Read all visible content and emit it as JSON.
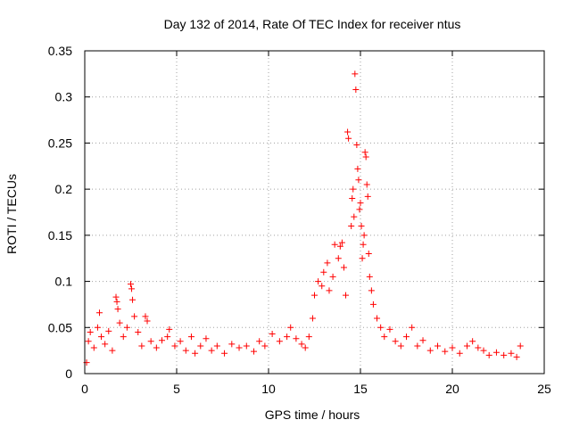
{
  "chart_data": {
    "type": "scatter",
    "title": "Day 132 of 2014, Rate Of TEC Index for receiver ntus",
    "xlabel": "GPS time / hours",
    "ylabel": "ROTI / TECUs",
    "xlim": [
      0,
      25
    ],
    "ylim": [
      0,
      0.35
    ],
    "xticks": [
      0,
      5,
      10,
      15,
      20,
      25
    ],
    "xtick_labels": [
      "0",
      "5",
      "10",
      "15",
      "20",
      "25"
    ],
    "yticks": [
      0,
      0.05,
      0.1,
      0.15,
      0.2,
      0.25,
      0.3,
      0.35
    ],
    "ytick_labels": [
      "0",
      "0.05",
      "0.1",
      "0.15",
      "0.2",
      "0.25",
      "0.3",
      "0.35"
    ],
    "grid": true,
    "marker": "+",
    "series": [
      {
        "name": "ROTI",
        "color": "#ff0000",
        "points": [
          [
            0.1,
            0.012
          ],
          [
            0.2,
            0.035
          ],
          [
            0.3,
            0.045
          ],
          [
            0.5,
            0.028
          ],
          [
            0.7,
            0.05
          ],
          [
            0.8,
            0.066
          ],
          [
            0.9,
            0.04
          ],
          [
            1.1,
            0.032
          ],
          [
            1.3,
            0.046
          ],
          [
            1.5,
            0.025
          ],
          [
            1.7,
            0.083
          ],
          [
            1.75,
            0.078
          ],
          [
            1.8,
            0.07
          ],
          [
            1.9,
            0.055
          ],
          [
            2.1,
            0.04
          ],
          [
            2.3,
            0.05
          ],
          [
            2.5,
            0.097
          ],
          [
            2.55,
            0.092
          ],
          [
            2.6,
            0.08
          ],
          [
            2.7,
            0.062
          ],
          [
            2.9,
            0.045
          ],
          [
            3.1,
            0.03
          ],
          [
            3.3,
            0.062
          ],
          [
            3.4,
            0.057
          ],
          [
            3.6,
            0.035
          ],
          [
            3.9,
            0.028
          ],
          [
            4.2,
            0.036
          ],
          [
            4.5,
            0.04
          ],
          [
            4.6,
            0.048
          ],
          [
            4.9,
            0.03
          ],
          [
            5.2,
            0.035
          ],
          [
            5.5,
            0.025
          ],
          [
            5.8,
            0.04
          ],
          [
            6.0,
            0.022
          ],
          [
            6.3,
            0.03
          ],
          [
            6.6,
            0.038
          ],
          [
            6.9,
            0.025
          ],
          [
            7.2,
            0.03
          ],
          [
            7.6,
            0.022
          ],
          [
            8.0,
            0.032
          ],
          [
            8.4,
            0.028
          ],
          [
            8.8,
            0.03
          ],
          [
            9.2,
            0.024
          ],
          [
            9.5,
            0.035
          ],
          [
            9.8,
            0.03
          ],
          [
            10.2,
            0.043
          ],
          [
            10.6,
            0.035
          ],
          [
            11.0,
            0.04
          ],
          [
            11.2,
            0.05
          ],
          [
            11.5,
            0.038
          ],
          [
            11.8,
            0.032
          ],
          [
            12.0,
            0.028
          ],
          [
            12.2,
            0.04
          ],
          [
            12.4,
            0.06
          ],
          [
            12.5,
            0.085
          ],
          [
            12.7,
            0.1
          ],
          [
            12.9,
            0.095
          ],
          [
            13.0,
            0.11
          ],
          [
            13.2,
            0.12
          ],
          [
            13.3,
            0.09
          ],
          [
            13.5,
            0.105
          ],
          [
            13.6,
            0.14
          ],
          [
            13.8,
            0.125
          ],
          [
            13.9,
            0.138
          ],
          [
            14.0,
            0.142
          ],
          [
            14.1,
            0.115
          ],
          [
            14.2,
            0.085
          ],
          [
            14.3,
            0.262
          ],
          [
            14.35,
            0.255
          ],
          [
            14.5,
            0.16
          ],
          [
            14.55,
            0.19
          ],
          [
            14.6,
            0.2
          ],
          [
            14.65,
            0.17
          ],
          [
            14.7,
            0.325
          ],
          [
            14.75,
            0.308
          ],
          [
            14.8,
            0.248
          ],
          [
            14.85,
            0.222
          ],
          [
            14.9,
            0.21
          ],
          [
            14.95,
            0.178
          ],
          [
            15.0,
            0.185
          ],
          [
            15.05,
            0.16
          ],
          [
            15.1,
            0.125
          ],
          [
            15.15,
            0.14
          ],
          [
            15.2,
            0.15
          ],
          [
            15.25,
            0.24
          ],
          [
            15.3,
            0.235
          ],
          [
            15.35,
            0.205
          ],
          [
            15.4,
            0.192
          ],
          [
            15.45,
            0.13
          ],
          [
            15.5,
            0.105
          ],
          [
            15.6,
            0.09
          ],
          [
            15.7,
            0.075
          ],
          [
            15.9,
            0.06
          ],
          [
            16.1,
            0.05
          ],
          [
            16.3,
            0.04
          ],
          [
            16.6,
            0.048
          ],
          [
            16.9,
            0.035
          ],
          [
            17.2,
            0.03
          ],
          [
            17.5,
            0.04
          ],
          [
            17.8,
            0.05
          ],
          [
            18.1,
            0.03
          ],
          [
            18.4,
            0.036
          ],
          [
            18.8,
            0.025
          ],
          [
            19.2,
            0.03
          ],
          [
            19.6,
            0.024
          ],
          [
            20.0,
            0.028
          ],
          [
            20.4,
            0.022
          ],
          [
            20.8,
            0.03
          ],
          [
            21.1,
            0.035
          ],
          [
            21.4,
            0.028
          ],
          [
            21.7,
            0.025
          ],
          [
            22.0,
            0.02
          ],
          [
            22.4,
            0.023
          ],
          [
            22.8,
            0.02
          ],
          [
            23.2,
            0.022
          ],
          [
            23.5,
            0.018
          ],
          [
            23.7,
            0.03
          ]
        ]
      }
    ]
  }
}
